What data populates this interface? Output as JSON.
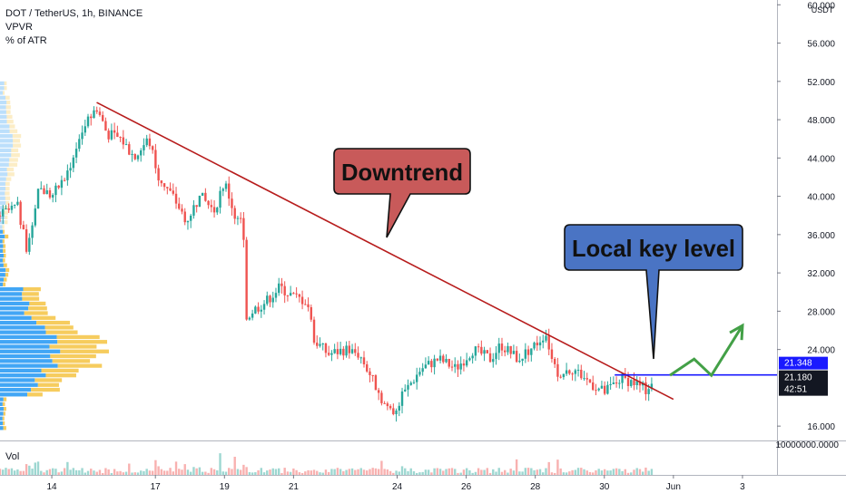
{
  "header": {
    "symbol": "DOT / TetherUS, 1h, BINANCE",
    "indicator_1": "VPVR",
    "indicator_2": "% of ATR"
  },
  "price_axis": {
    "unit": "USDT",
    "ticks": [
      "60.000",
      "56.000",
      "52.000",
      "48.000",
      "44.000",
      "40.000",
      "36.000",
      "32.000",
      "28.000",
      "24.000",
      "16.000"
    ],
    "tick_values": [
      60,
      56,
      52,
      48,
      44,
      40,
      36,
      32,
      28,
      24,
      16
    ]
  },
  "time_axis": {
    "ticks": [
      "14",
      "17",
      "19",
      "21",
      "24",
      "26",
      "28",
      "30",
      "Jun",
      "3"
    ],
    "tick_days": [
      14,
      17,
      19,
      21,
      24,
      26,
      28,
      30,
      32,
      34
    ]
  },
  "volume_pane": {
    "label": "Vol",
    "axis_tick": "10000000.0000"
  },
  "price_badges": {
    "level": "21.348",
    "last": "21.180",
    "countdown": "42:51"
  },
  "annotations": {
    "downtrend": "Downtrend",
    "key_level": "Local key level"
  },
  "colors": {
    "up": "#26a69a",
    "down": "#ef5350",
    "trendline": "#b71c1c",
    "key_level": "#1a1aff",
    "arrow": "#43a047",
    "vp_up": "#2196f3",
    "vp_down": "#f5c342",
    "downtrend_box": "#c85a5a",
    "key_level_box": "#4a74c4"
  },
  "chart_data": {
    "type": "candlestick",
    "x_unit": "day of May",
    "y_unit": "USDT",
    "ylim": [
      14.5,
      60.5
    ],
    "xlim": [
      12.5,
      35
    ],
    "price_path": [
      [
        12.5,
        38
      ],
      [
        13.0,
        39
      ],
      [
        13.3,
        34
      ],
      [
        13.6,
        41
      ],
      [
        14.0,
        40
      ],
      [
        14.4,
        42
      ],
      [
        14.9,
        47
      ],
      [
        15.3,
        49.3
      ],
      [
        15.6,
        46.5
      ],
      [
        16.0,
        46
      ],
      [
        16.4,
        44
      ],
      [
        16.8,
        46
      ],
      [
        17.1,
        42
      ],
      [
        17.5,
        40
      ],
      [
        17.9,
        37.5
      ],
      [
        18.3,
        40
      ],
      [
        18.7,
        38.5
      ],
      [
        19.0,
        41.5
      ],
      [
        19.3,
        38
      ],
      [
        19.55,
        37
      ],
      [
        19.6,
        27
      ],
      [
        19.8,
        28
      ],
      [
        20.2,
        29
      ],
      [
        20.6,
        30.5
      ],
      [
        21.0,
        29.5
      ],
      [
        21.4,
        29
      ],
      [
        21.6,
        25
      ],
      [
        22.0,
        23.5
      ],
      [
        22.5,
        24
      ],
      [
        22.9,
        23.5
      ],
      [
        23.2,
        21.5
      ],
      [
        23.6,
        18.5
      ],
      [
        23.9,
        17.5
      ],
      [
        24.3,
        20
      ],
      [
        24.7,
        22
      ],
      [
        25.2,
        23
      ],
      [
        25.7,
        22
      ],
      [
        26.2,
        24
      ],
      [
        26.7,
        23
      ],
      [
        27.0,
        24.5
      ],
      [
        27.5,
        23
      ],
      [
        28.0,
        24.5
      ],
      [
        28.3,
        25.7
      ],
      [
        28.6,
        21.5
      ],
      [
        29.1,
        22
      ],
      [
        29.6,
        20.5
      ],
      [
        30.0,
        19.5
      ],
      [
        30.5,
        21
      ],
      [
        30.9,
        20.5
      ],
      [
        31.2,
        19.8
      ],
      [
        31.4,
        21.2
      ]
    ],
    "trendline": [
      [
        15.3,
        49.8
      ],
      [
        32.0,
        18.8
      ]
    ],
    "key_level": 21.348,
    "key_level_range": [
      30.3,
      35
    ],
    "projection_arrow": [
      [
        31.9,
        21.3
      ],
      [
        32.6,
        23.0
      ],
      [
        33.1,
        21.3
      ],
      [
        34.0,
        26.5
      ]
    ],
    "last_price": 21.18
  }
}
